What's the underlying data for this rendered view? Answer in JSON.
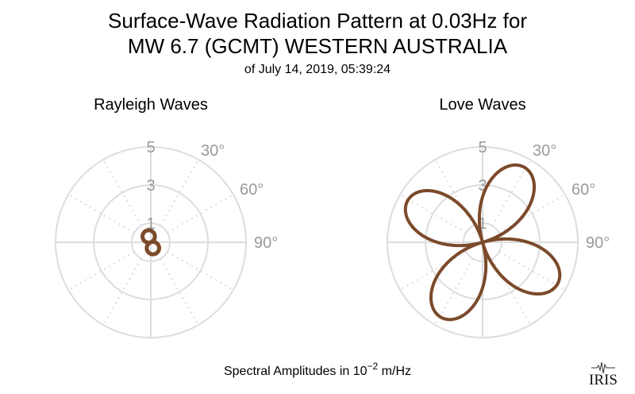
{
  "title_line1": "Surface-Wave Radiation Pattern at 0.03Hz for",
  "title_line2": "MW 6.7 (GCMT) WESTERN AUSTRALIA",
  "subtitle": "of July 14, 2019, 05:39:24",
  "footer_prefix": "Spectral Amplitudes in 10",
  "footer_exp": "−2",
  "footer_suffix": " m/Hz",
  "logo_text": "IRIS",
  "chart_data": [
    {
      "type": "polar-line",
      "title": "Rayleigh Waves",
      "radial_ticks": [
        "1",
        "3",
        "5"
      ],
      "radial_range": [
        0,
        5
      ],
      "angle_ticks": [
        "30°",
        "60°",
        "90°"
      ],
      "series_color": "#7b4a2a",
      "pattern": {
        "shape": "figure-eight",
        "max_amplitude": 0.65,
        "lobe_azimuths_deg": [
          340,
          160
        ]
      }
    },
    {
      "type": "polar-line",
      "title": "Love Waves",
      "radial_ticks": [
        "1",
        "3",
        "5"
      ],
      "radial_range": [
        0,
        5
      ],
      "angle_ticks": [
        "30°",
        "60°",
        "90°"
      ],
      "series_color": "#7b4a2a",
      "pattern": {
        "shape": "four-lobe",
        "max_amplitude": 4.5,
        "lobe_azimuths_deg": [
          29,
          119,
          209,
          299
        ]
      }
    }
  ]
}
